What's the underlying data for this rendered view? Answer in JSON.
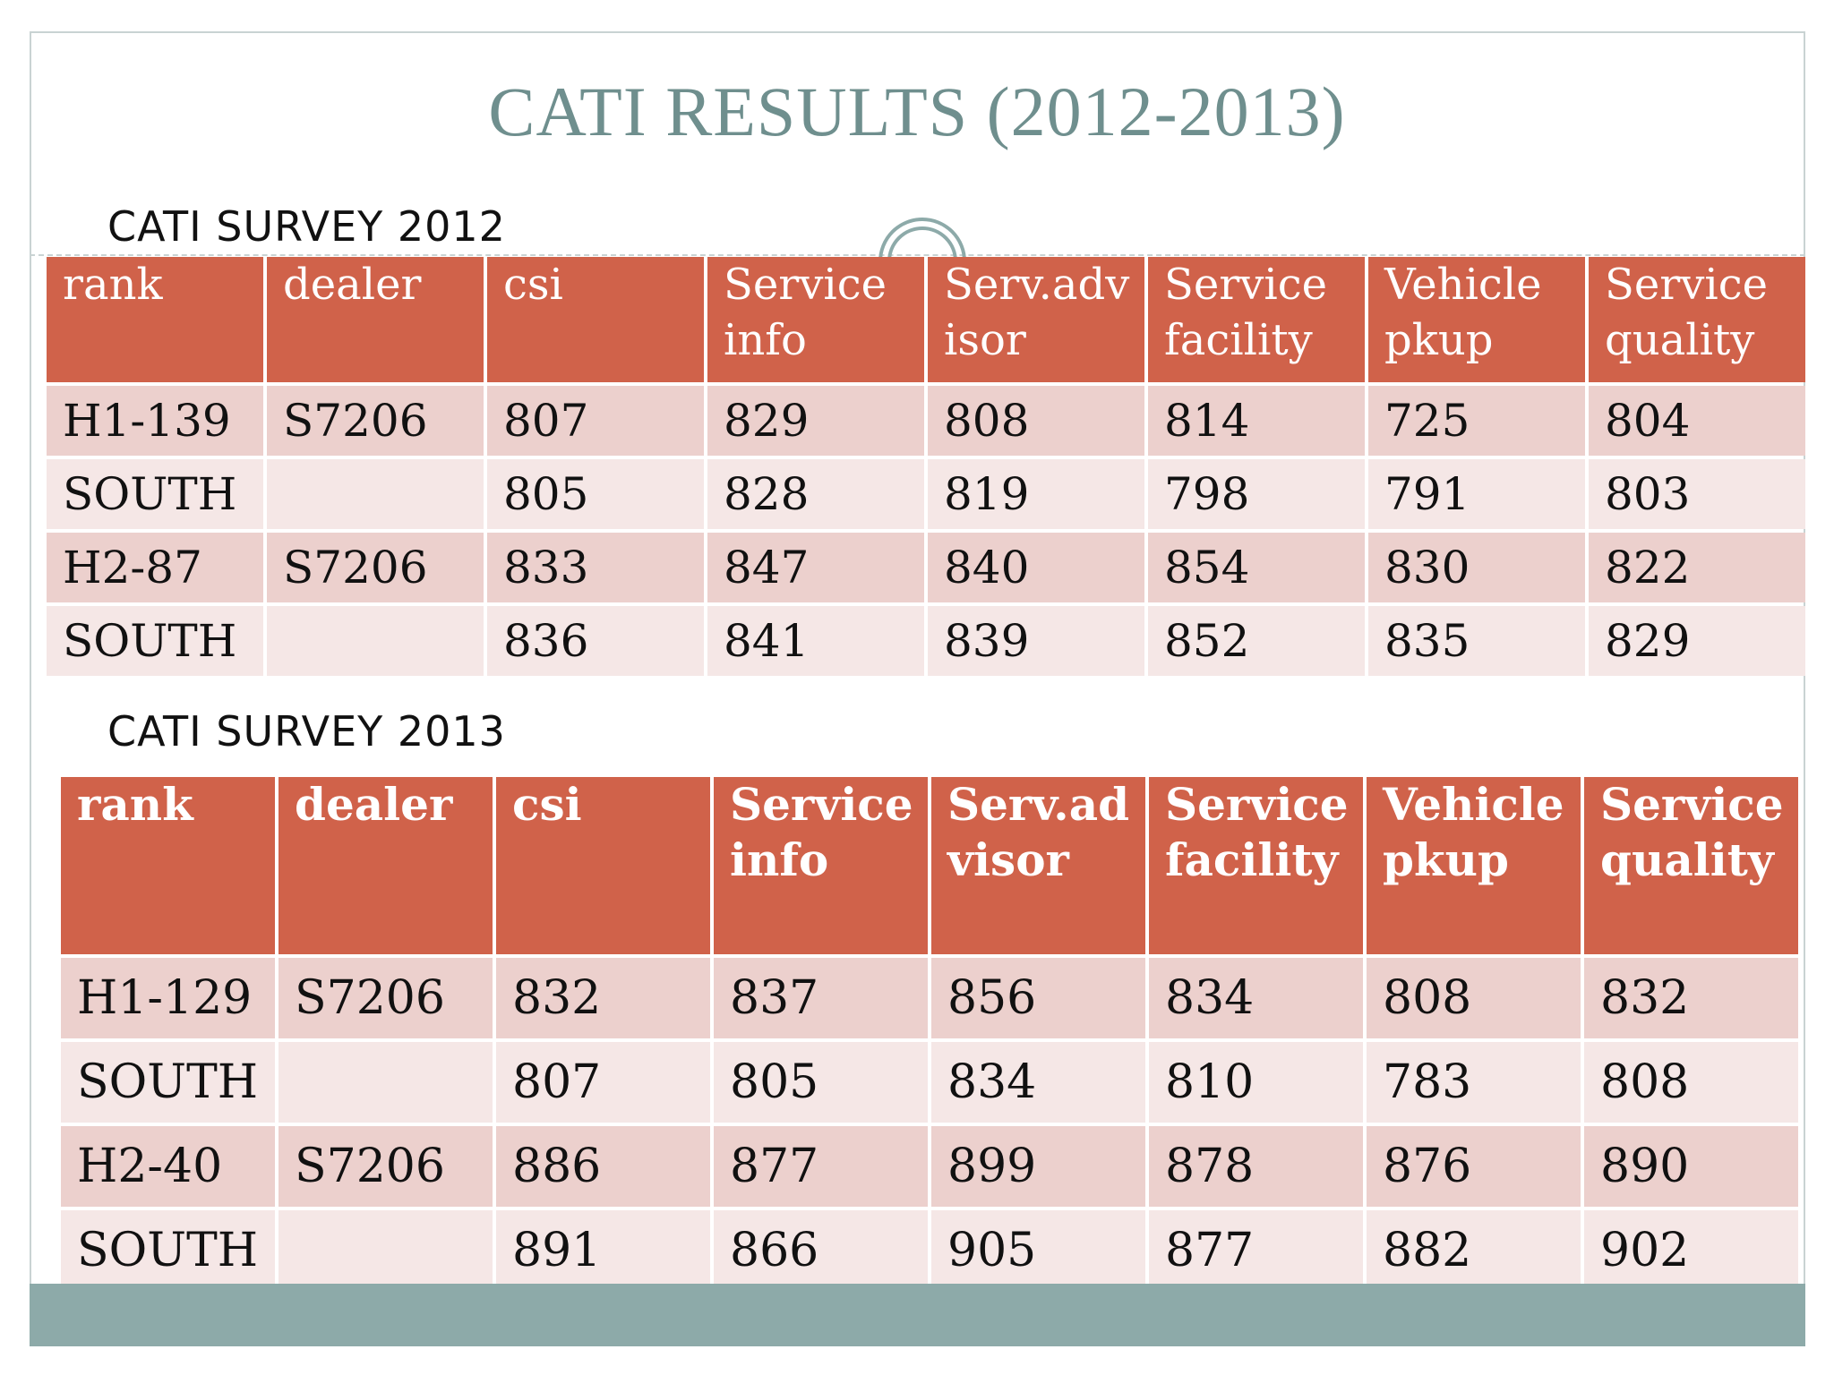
{
  "title": "CATI RESULTS (2012-2013)",
  "survey_2012": {
    "label": "CATI SURVEY 2012",
    "headers": [
      "rank",
      "dealer",
      "csi",
      "Service info",
      "Serv.adv isor",
      "Service facility",
      "Vehicle pkup",
      "Service quality"
    ],
    "rows": [
      [
        "H1-139",
        "S7206",
        "807",
        "829",
        "808",
        "814",
        "725",
        "804"
      ],
      [
        "SOUTH",
        "",
        "805",
        "828",
        "819",
        "798",
        "791",
        "803"
      ],
      [
        "H2-87",
        "S7206",
        "833",
        "847",
        "840",
        "854",
        "830",
        "822"
      ],
      [
        "SOUTH",
        "",
        "836",
        "841",
        "839",
        "852",
        "835",
        "829"
      ]
    ]
  },
  "survey_2013": {
    "label": "CATI SURVEY 2013",
    "headers": [
      "rank",
      "dealer",
      "csi",
      "Service info",
      "Serv.ad visor",
      "Service facility",
      "Vehicle pkup",
      "Service quality"
    ],
    "rows": [
      [
        "H1-129",
        "S7206",
        "832",
        "837",
        "856",
        "834",
        "808",
        "832"
      ],
      [
        "SOUTH",
        "",
        "807",
        "805",
        "834",
        "810",
        "783",
        "808"
      ],
      [
        "H2-40",
        "S7206",
        "886",
        "877",
        "899",
        "878",
        "876",
        "890"
      ],
      [
        "SOUTH",
        "",
        "891",
        "866",
        "905",
        "877",
        "882",
        "902"
      ]
    ]
  },
  "colors": {
    "header_bg": "#d0624a",
    "row_odd": "#ecd0cd",
    "row_even": "#f5e7e6",
    "title": "#6f8f8e",
    "footer_bar": "#8daaa9"
  }
}
